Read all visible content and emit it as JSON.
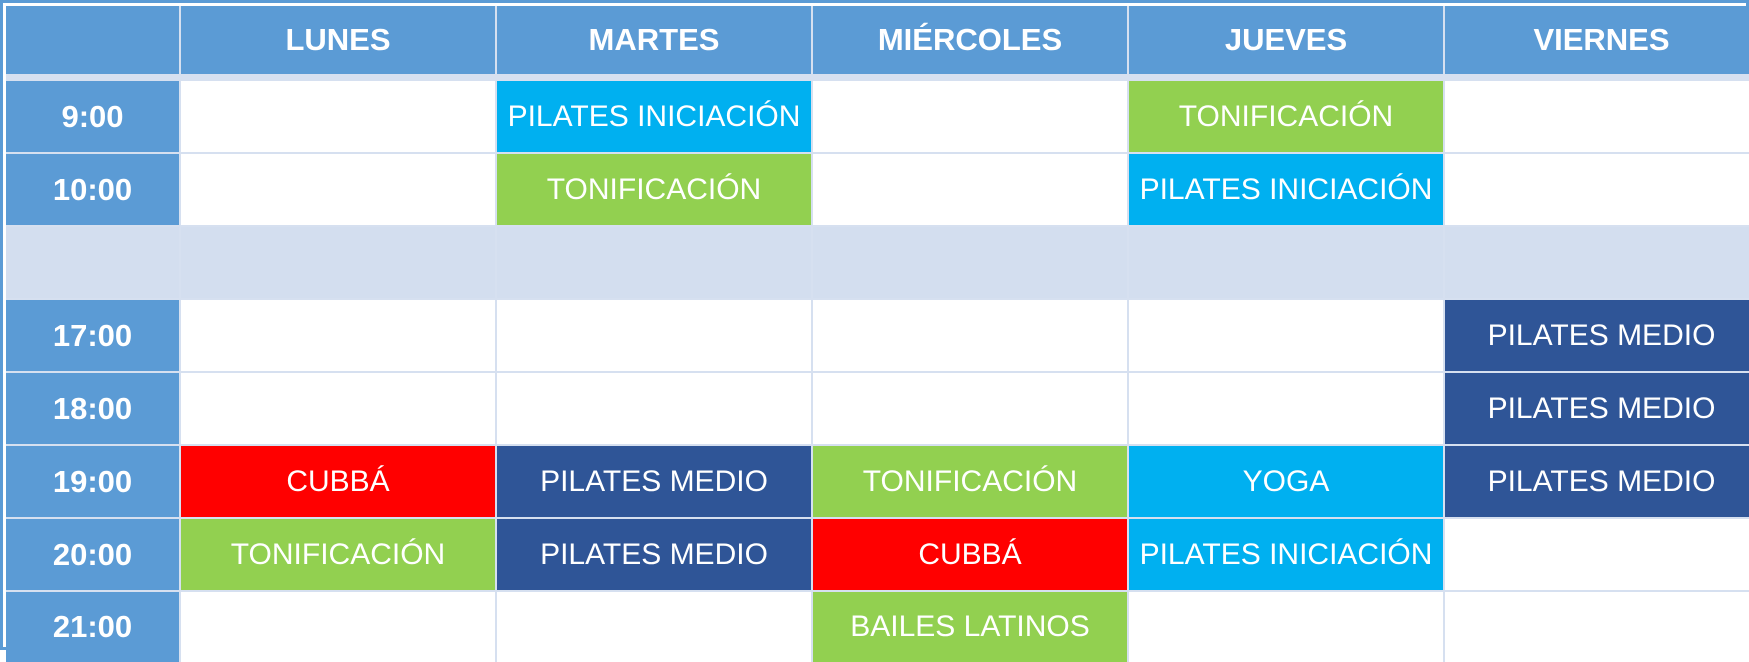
{
  "colors": {
    "header": "#5b9bd5",
    "pilates_iniciacion": "#00b0f0",
    "tonificacion": "#92d050",
    "pilates_medio": "#2f5597",
    "cubba": "#ff0000",
    "yoga": "#00b0f0",
    "bailes_latinos": "#92d050",
    "break": "#d3deef"
  },
  "days": [
    "LUNES",
    "MARTES",
    "MIÉRCOLES",
    "JUEVES",
    "VIERNES"
  ],
  "rows": [
    {
      "time": "9:00",
      "cells": [
        "",
        "PILATES INICIACIÓN",
        "",
        "TONIFICACIÓN",
        ""
      ]
    },
    {
      "time": "10:00",
      "cells": [
        "",
        "TONIFICACIÓN",
        "",
        "PILATES INICIACIÓN",
        ""
      ]
    },
    {
      "time": "",
      "break": true,
      "cells": [
        "",
        "",
        "",
        "",
        ""
      ]
    },
    {
      "time": "17:00",
      "cells": [
        "",
        "",
        "",
        "",
        "PILATES MEDIO"
      ]
    },
    {
      "time": "18:00",
      "cells": [
        "",
        "",
        "",
        "",
        "PILATES MEDIO"
      ]
    },
    {
      "time": "19:00",
      "cells": [
        "CUBBÁ",
        "PILATES MEDIO",
        "TONIFICACIÓN",
        "YOGA",
        "PILATES MEDIO"
      ]
    },
    {
      "time": "20:00",
      "cells": [
        "TONIFICACIÓN",
        "PILATES MEDIO",
        "CUBBÁ",
        "PILATES INICIACIÓN",
        ""
      ]
    },
    {
      "time": "21:00",
      "cells": [
        "",
        "",
        "BAILES LATINOS",
        "",
        ""
      ]
    }
  ]
}
